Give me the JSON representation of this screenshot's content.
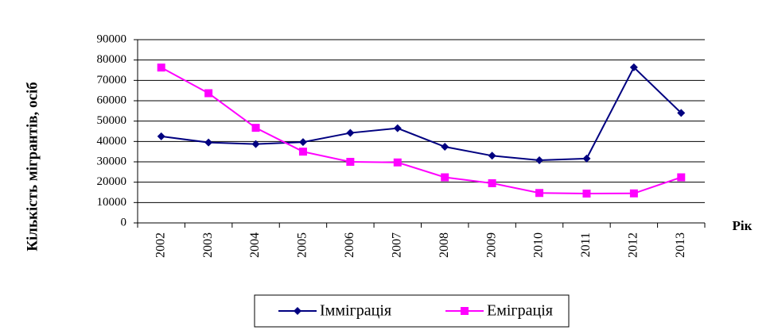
{
  "chart_data": {
    "type": "line",
    "ylabel": "Кількість мігрантів,  осіб",
    "xlabel": "Рік",
    "categories": [
      "2002",
      "2003",
      "2004",
      "2005",
      "2006",
      "2007",
      "2008",
      "2009",
      "2010",
      "2011",
      "2012",
      "2013"
    ],
    "series": [
      {
        "name": "Імміграція",
        "color": "#000080",
        "marker": "diamond",
        "values": [
          42500,
          39500,
          38700,
          39700,
          44200,
          46500,
          37400,
          33000,
          30800,
          31600,
          76400,
          54000
        ]
      },
      {
        "name": "Еміграція",
        "color": "#ff00ff",
        "marker": "square",
        "values": [
          76300,
          63700,
          46700,
          35000,
          30000,
          29700,
          22400,
          19500,
          14700,
          14400,
          14500,
          22400
        ]
      }
    ],
    "ylim": [
      0,
      90000
    ],
    "yticks": [
      0,
      10000,
      20000,
      30000,
      40000,
      50000,
      60000,
      70000,
      80000,
      90000
    ],
    "grid": true,
    "legend": "bottom"
  }
}
